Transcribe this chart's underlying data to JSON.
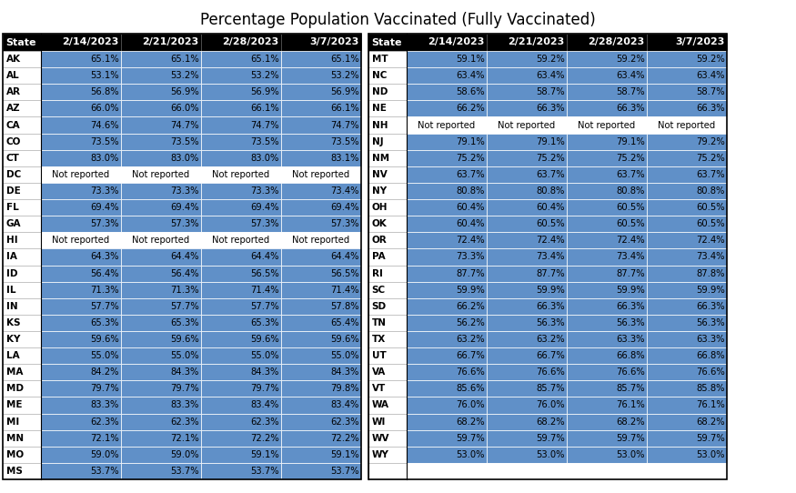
{
  "title": "Percentage Population Vaccinated (Fully Vaccinated)",
  "left_states": [
    "AK",
    "AL",
    "AR",
    "AZ",
    "CA",
    "CO",
    "CT",
    "DC",
    "DE",
    "FL",
    "GA",
    "HI",
    "IA",
    "ID",
    "IL",
    "IN",
    "KS",
    "KY",
    "LA",
    "MA",
    "MD",
    "ME",
    "MI",
    "MN",
    "MO",
    "MS"
  ],
  "right_states": [
    "MT",
    "NC",
    "ND",
    "NE",
    "NH",
    "NJ",
    "NM",
    "NV",
    "NY",
    "OH",
    "OK",
    "OR",
    "PA",
    "RI",
    "SC",
    "SD",
    "TN",
    "TX",
    "UT",
    "VA",
    "VT",
    "WA",
    "WI",
    "WV",
    "WY",
    ""
  ],
  "dates": [
    "2/14/2023",
    "2/21/2023",
    "2/28/2023",
    "3/7/2023"
  ],
  "left_data": [
    [
      "65.1%",
      "65.1%",
      "65.1%",
      "65.1%"
    ],
    [
      "53.1%",
      "53.2%",
      "53.2%",
      "53.2%"
    ],
    [
      "56.8%",
      "56.9%",
      "56.9%",
      "56.9%"
    ],
    [
      "66.0%",
      "66.0%",
      "66.1%",
      "66.1%"
    ],
    [
      "74.6%",
      "74.7%",
      "74.7%",
      "74.7%"
    ],
    [
      "73.5%",
      "73.5%",
      "73.5%",
      "73.5%"
    ],
    [
      "83.0%",
      "83.0%",
      "83.0%",
      "83.1%"
    ],
    [
      "Not reported",
      "Not reported",
      "Not reported",
      "Not reported"
    ],
    [
      "73.3%",
      "73.3%",
      "73.3%",
      "73.4%"
    ],
    [
      "69.4%",
      "69.4%",
      "69.4%",
      "69.4%"
    ],
    [
      "57.3%",
      "57.3%",
      "57.3%",
      "57.3%"
    ],
    [
      "Not reported",
      "Not reported",
      "Not reported",
      "Not reported"
    ],
    [
      "64.3%",
      "64.4%",
      "64.4%",
      "64.4%"
    ],
    [
      "56.4%",
      "56.4%",
      "56.5%",
      "56.5%"
    ],
    [
      "71.3%",
      "71.3%",
      "71.4%",
      "71.4%"
    ],
    [
      "57.7%",
      "57.7%",
      "57.7%",
      "57.8%"
    ],
    [
      "65.3%",
      "65.3%",
      "65.3%",
      "65.4%"
    ],
    [
      "59.6%",
      "59.6%",
      "59.6%",
      "59.6%"
    ],
    [
      "55.0%",
      "55.0%",
      "55.0%",
      "55.0%"
    ],
    [
      "84.2%",
      "84.3%",
      "84.3%",
      "84.3%"
    ],
    [
      "79.7%",
      "79.7%",
      "79.7%",
      "79.8%"
    ],
    [
      "83.3%",
      "83.3%",
      "83.4%",
      "83.4%"
    ],
    [
      "62.3%",
      "62.3%",
      "62.3%",
      "62.3%"
    ],
    [
      "72.1%",
      "72.1%",
      "72.2%",
      "72.2%"
    ],
    [
      "59.0%",
      "59.0%",
      "59.1%",
      "59.1%"
    ],
    [
      "53.7%",
      "53.7%",
      "53.7%",
      "53.7%"
    ]
  ],
  "right_data": [
    [
      "59.1%",
      "59.2%",
      "59.2%",
      "59.2%"
    ],
    [
      "63.4%",
      "63.4%",
      "63.4%",
      "63.4%"
    ],
    [
      "58.6%",
      "58.7%",
      "58.7%",
      "58.7%"
    ],
    [
      "66.2%",
      "66.3%",
      "66.3%",
      "66.3%"
    ],
    [
      "Not reported",
      "Not reported",
      "Not reported",
      "Not reported"
    ],
    [
      "79.1%",
      "79.1%",
      "79.1%",
      "79.2%"
    ],
    [
      "75.2%",
      "75.2%",
      "75.2%",
      "75.2%"
    ],
    [
      "63.7%",
      "63.7%",
      "63.7%",
      "63.7%"
    ],
    [
      "80.8%",
      "80.8%",
      "80.8%",
      "80.8%"
    ],
    [
      "60.4%",
      "60.4%",
      "60.5%",
      "60.5%"
    ],
    [
      "60.4%",
      "60.5%",
      "60.5%",
      "60.5%"
    ],
    [
      "72.4%",
      "72.4%",
      "72.4%",
      "72.4%"
    ],
    [
      "73.3%",
      "73.4%",
      "73.4%",
      "73.4%"
    ],
    [
      "87.7%",
      "87.7%",
      "87.7%",
      "87.8%"
    ],
    [
      "59.9%",
      "59.9%",
      "59.9%",
      "59.9%"
    ],
    [
      "66.2%",
      "66.3%",
      "66.3%",
      "66.3%"
    ],
    [
      "56.2%",
      "56.3%",
      "56.3%",
      "56.3%"
    ],
    [
      "63.2%",
      "63.2%",
      "63.3%",
      "63.3%"
    ],
    [
      "66.7%",
      "66.7%",
      "66.8%",
      "66.8%"
    ],
    [
      "76.6%",
      "76.6%",
      "76.6%",
      "76.6%"
    ],
    [
      "85.6%",
      "85.7%",
      "85.7%",
      "85.8%"
    ],
    [
      "76.0%",
      "76.0%",
      "76.1%",
      "76.1%"
    ],
    [
      "68.2%",
      "68.2%",
      "68.2%",
      "68.2%"
    ],
    [
      "59.7%",
      "59.7%",
      "59.7%",
      "59.7%"
    ],
    [
      "53.0%",
      "53.0%",
      "53.0%",
      "53.0%"
    ],
    [
      "",
      "",
      "",
      ""
    ]
  ],
  "header_bg": "#000000",
  "header_text_color": "#ffffff",
  "cell_bg_blue": "#6090c8",
  "title_fontsize": 12,
  "header_fontsize": 8,
  "cell_fontsize": 7.2,
  "state_fontsize": 7.5
}
